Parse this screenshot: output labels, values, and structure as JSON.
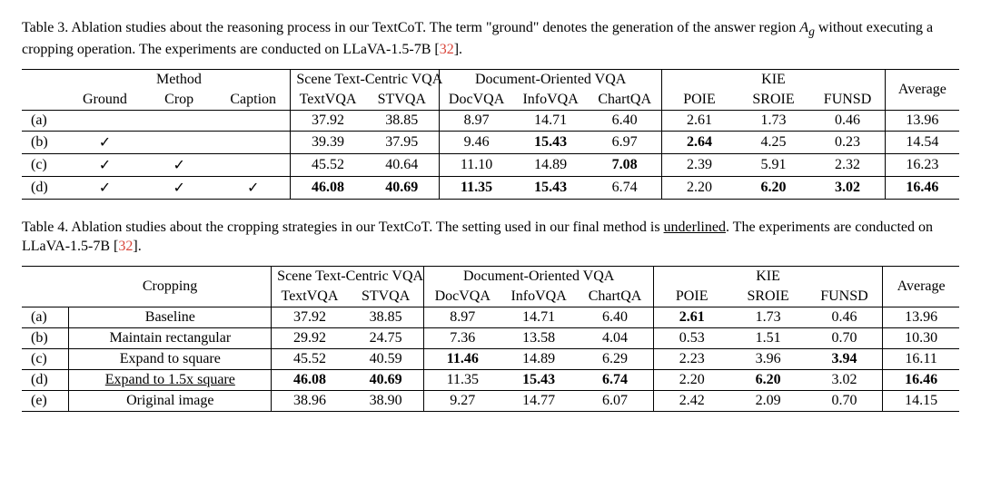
{
  "citation_color": "#d9463b",
  "checkmark": "✓",
  "table3": {
    "caption_prefix": "Table 3.",
    "caption_body": " Ablation studies about the reasoning process in our TextCoT. The term \"ground\" denotes the generation of the answer region ",
    "caption_var": "A",
    "caption_sub": "g",
    "caption_after_var": " without executing a cropping operation. The experiments are conducted on LLaVA-1.5-7B [",
    "cite": "32",
    "caption_end": "].",
    "group_labels": {
      "method": "Method",
      "scene": "Scene Text-Centric VQA",
      "doc": "Document-Oriented VQA",
      "kie": "KIE",
      "avg": "Average"
    },
    "method_cols": [
      "Ground",
      "Crop",
      "Caption"
    ],
    "scene_cols": [
      "TextVQA",
      "STVQA"
    ],
    "doc_cols": [
      "DocVQA",
      "InfoVQA",
      "ChartQA"
    ],
    "kie_cols": [
      "POIE",
      "SROIE",
      "FUNSD"
    ],
    "rows": [
      {
        "label": "(a)",
        "checks": [
          false,
          false,
          false
        ],
        "vals": [
          "37.92",
          "38.85",
          "8.97",
          "14.71",
          "6.40",
          "2.61",
          "1.73",
          "0.46",
          "13.96"
        ],
        "bold": [
          false,
          false,
          false,
          false,
          false,
          false,
          false,
          false,
          false
        ]
      },
      {
        "label": "(b)",
        "checks": [
          true,
          false,
          false
        ],
        "vals": [
          "39.39",
          "37.95",
          "9.46",
          "15.43",
          "6.97",
          "2.64",
          "4.25",
          "0.23",
          "14.54"
        ],
        "bold": [
          false,
          false,
          false,
          true,
          false,
          true,
          false,
          false,
          false
        ]
      },
      {
        "label": "(c)",
        "checks": [
          true,
          true,
          false
        ],
        "vals": [
          "45.52",
          "40.64",
          "11.10",
          "14.89",
          "7.08",
          "2.39",
          "5.91",
          "2.32",
          "16.23"
        ],
        "bold": [
          false,
          false,
          false,
          false,
          true,
          false,
          false,
          false,
          false
        ]
      },
      {
        "label": "(d)",
        "checks": [
          true,
          true,
          true
        ],
        "vals": [
          "46.08",
          "40.69",
          "11.35",
          "15.43",
          "6.74",
          "2.20",
          "6.20",
          "3.02",
          "16.46"
        ],
        "bold": [
          true,
          true,
          true,
          true,
          false,
          false,
          true,
          true,
          true
        ]
      }
    ]
  },
  "table4": {
    "caption_prefix": "Table 4.",
    "caption_body": " Ablation studies about the cropping strategies in our TextCoT. The setting used in our final method is ",
    "caption_underlined": "underlined",
    "caption_after": ". The experiments are conducted on LLaVA-1.5-7B [",
    "cite": "32",
    "caption_end": "].",
    "group_labels": {
      "cropping": "Cropping",
      "scene": "Scene Text-Centric VQA",
      "doc": "Document-Oriented VQA",
      "kie": "KIE",
      "avg": "Average"
    },
    "scene_cols": [
      "TextVQA",
      "STVQA"
    ],
    "doc_cols": [
      "DocVQA",
      "InfoVQA",
      "ChartQA"
    ],
    "kie_cols": [
      "POIE",
      "SROIE",
      "FUNSD"
    ],
    "rows": [
      {
        "label": "(a)",
        "name": "Baseline",
        "underline": false,
        "vals": [
          "37.92",
          "38.85",
          "8.97",
          "14.71",
          "6.40",
          "2.61",
          "1.73",
          "0.46",
          "13.96"
        ],
        "bold": [
          false,
          false,
          false,
          false,
          false,
          true,
          false,
          false,
          false
        ]
      },
      {
        "label": "(b)",
        "name": "Maintain rectangular",
        "underline": false,
        "vals": [
          "29.92",
          "24.75",
          "7.36",
          "13.58",
          "4.04",
          "0.53",
          "1.51",
          "0.70",
          "10.30"
        ],
        "bold": [
          false,
          false,
          false,
          false,
          false,
          false,
          false,
          false,
          false
        ]
      },
      {
        "label": "(c)",
        "name": "Expand to square",
        "underline": false,
        "vals": [
          "45.52",
          "40.59",
          "11.46",
          "14.89",
          "6.29",
          "2.23",
          "3.96",
          "3.94",
          "16.11"
        ],
        "bold": [
          false,
          false,
          true,
          false,
          false,
          false,
          false,
          true,
          false
        ]
      },
      {
        "label": "(d)",
        "name": "Expand to 1.5x square",
        "underline": true,
        "vals": [
          "46.08",
          "40.69",
          "11.35",
          "15.43",
          "6.74",
          "2.20",
          "6.20",
          "3.02",
          "16.46"
        ],
        "bold": [
          true,
          true,
          false,
          true,
          true,
          false,
          true,
          false,
          true
        ]
      },
      {
        "label": "(e)",
        "name": "Original image",
        "underline": false,
        "vals": [
          "38.96",
          "38.90",
          "9.27",
          "14.77",
          "6.07",
          "2.42",
          "2.09",
          "0.70",
          "14.15"
        ],
        "bold": [
          false,
          false,
          false,
          false,
          false,
          false,
          false,
          false,
          false
        ]
      }
    ]
  }
}
